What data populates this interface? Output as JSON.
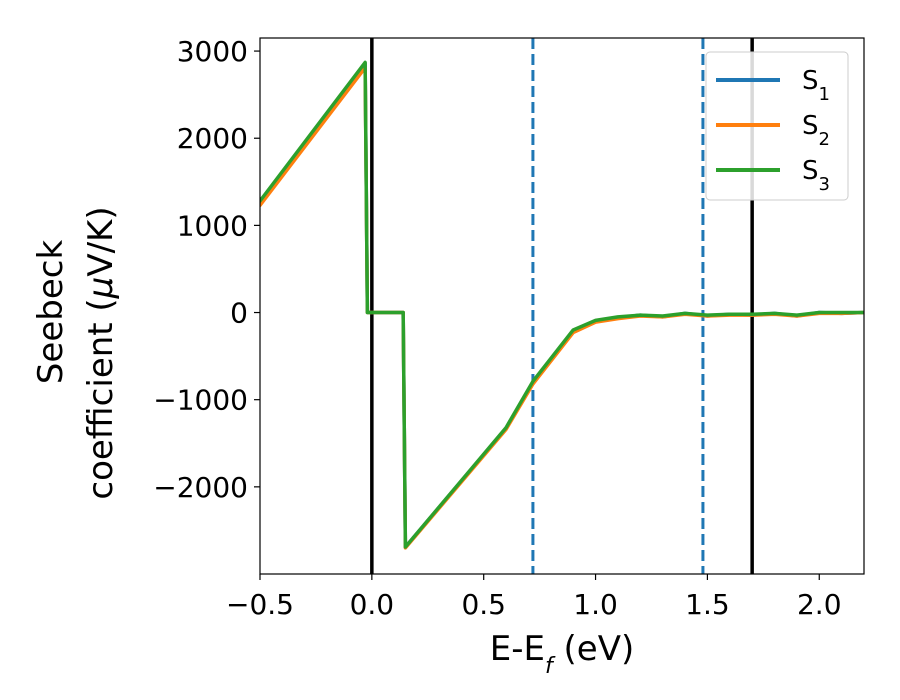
{
  "chart_data": {
    "type": "line",
    "xlabel": "E-E",
    "xlabel_sub": "f",
    "xlabel_unit": " (eV)",
    "ylabel_line1": "Seebeck",
    "ylabel_line2_text": "coefficient  (",
    "ylabel_mu": "μ",
    "ylabel_unit": "V/K)",
    "xlim": [
      -0.5,
      2.2
    ],
    "ylim": [
      -3000,
      3150
    ],
    "xticks": [
      -0.5,
      0.0,
      0.5,
      1.0,
      1.5,
      2.0
    ],
    "xtick_labels": [
      "−0.5",
      "0.0",
      "0.5",
      "1.0",
      "1.5",
      "2.0"
    ],
    "yticks": [
      -2000,
      -1000,
      0,
      1000,
      2000,
      3000
    ],
    "ytick_labels": [
      "−2000",
      "−1000",
      "0",
      "1000",
      "2000",
      "3000"
    ],
    "grid": false,
    "legend_position": "top-right",
    "vlines": [
      {
        "x": 0.0,
        "style": "solid",
        "color": "#000000"
      },
      {
        "x": 1.7,
        "style": "solid",
        "color": "#000000"
      },
      {
        "x": 0.72,
        "style": "dashed",
        "color": "#1f77b4"
      },
      {
        "x": 1.48,
        "style": "dashed",
        "color": "#1f77b4"
      }
    ],
    "series": [
      {
        "name": "S",
        "sub": "1",
        "color": "#1f77b4",
        "points": [
          [
            -0.5,
            1270
          ],
          [
            -0.03,
            2860
          ],
          [
            -0.02,
            0
          ],
          [
            0.14,
            0
          ],
          [
            0.15,
            -2690
          ],
          [
            0.6,
            -1330
          ],
          [
            0.72,
            -800
          ],
          [
            0.9,
            -210
          ],
          [
            1.0,
            -100
          ],
          [
            1.1,
            -60
          ],
          [
            1.2,
            -30
          ],
          [
            1.3,
            -50
          ],
          [
            1.4,
            -10
          ],
          [
            1.5,
            -40
          ],
          [
            1.6,
            -20
          ],
          [
            1.7,
            -30
          ],
          [
            1.8,
            -10
          ],
          [
            1.9,
            -40
          ],
          [
            2.0,
            0
          ],
          [
            2.1,
            -10
          ],
          [
            2.2,
            0
          ]
        ]
      },
      {
        "name": "S",
        "sub": "2",
        "color": "#ff7f0e",
        "points": [
          [
            -0.5,
            1230
          ],
          [
            -0.03,
            2810
          ],
          [
            -0.02,
            0
          ],
          [
            0.14,
            0
          ],
          [
            0.15,
            -2700
          ],
          [
            0.6,
            -1340
          ],
          [
            0.72,
            -820
          ],
          [
            0.9,
            -230
          ],
          [
            1.0,
            -110
          ],
          [
            1.1,
            -70
          ],
          [
            1.2,
            -40
          ],
          [
            1.3,
            -50
          ],
          [
            1.4,
            -20
          ],
          [
            1.5,
            -40
          ],
          [
            1.6,
            -30
          ],
          [
            1.7,
            -30
          ],
          [
            1.8,
            -20
          ],
          [
            1.9,
            -40
          ],
          [
            2.0,
            -10
          ],
          [
            2.1,
            -10
          ],
          [
            2.2,
            0
          ]
        ]
      },
      {
        "name": "S",
        "sub": "3",
        "color": "#2ca02c",
        "points": [
          [
            -0.5,
            1280
          ],
          [
            -0.03,
            2870
          ],
          [
            -0.02,
            0
          ],
          [
            0.14,
            0
          ],
          [
            0.15,
            -2690
          ],
          [
            0.6,
            -1320
          ],
          [
            0.72,
            -790
          ],
          [
            0.9,
            -200
          ],
          [
            1.0,
            -90
          ],
          [
            1.1,
            -50
          ],
          [
            1.2,
            -30
          ],
          [
            1.3,
            -40
          ],
          [
            1.4,
            -10
          ],
          [
            1.5,
            -30
          ],
          [
            1.6,
            -20
          ],
          [
            1.7,
            -20
          ],
          [
            1.8,
            -10
          ],
          [
            1.9,
            -30
          ],
          [
            2.0,
            0
          ],
          [
            2.1,
            0
          ],
          [
            2.2,
            0
          ]
        ]
      }
    ]
  }
}
